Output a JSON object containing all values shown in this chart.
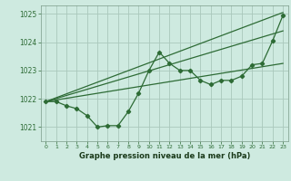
{
  "title": "Graphe pression niveau de la mer (hPa)",
  "bg_color": "#ceeae0",
  "grid_color": "#aac8bc",
  "line_color": "#2d6b35",
  "xlim": [
    -0.5,
    23.5
  ],
  "ylim": [
    1020.5,
    1025.3
  ],
  "xticks": [
    0,
    1,
    2,
    3,
    4,
    5,
    6,
    7,
    8,
    9,
    10,
    11,
    12,
    13,
    14,
    15,
    16,
    17,
    18,
    19,
    20,
    21,
    22,
    23
  ],
  "yticks": [
    1021,
    1022,
    1023,
    1024,
    1025
  ],
  "series": {
    "wavy": {
      "x": [
        0,
        1,
        2,
        3,
        4,
        5,
        6,
        7,
        8,
        9,
        10,
        11,
        12,
        13,
        14,
        15,
        16,
        17,
        18,
        19,
        20,
        21,
        22,
        23
      ],
      "y": [
        1021.9,
        1021.9,
        1021.75,
        1021.65,
        1021.4,
        1021.0,
        1021.05,
        1021.05,
        1021.55,
        1022.2,
        1023.0,
        1023.65,
        1023.25,
        1023.0,
        1023.0,
        1022.65,
        1022.5,
        1022.65,
        1022.65,
        1022.8,
        1023.2,
        1023.25,
        1024.05,
        1024.95
      ]
    },
    "upper": {
      "x": [
        0,
        23
      ],
      "y": [
        1021.9,
        1025.05
      ]
    },
    "middle_upper": {
      "x": [
        0,
        23
      ],
      "y": [
        1021.9,
        1024.4
      ]
    },
    "lower": {
      "x": [
        0,
        23
      ],
      "y": [
        1021.9,
        1023.25
      ]
    }
  }
}
